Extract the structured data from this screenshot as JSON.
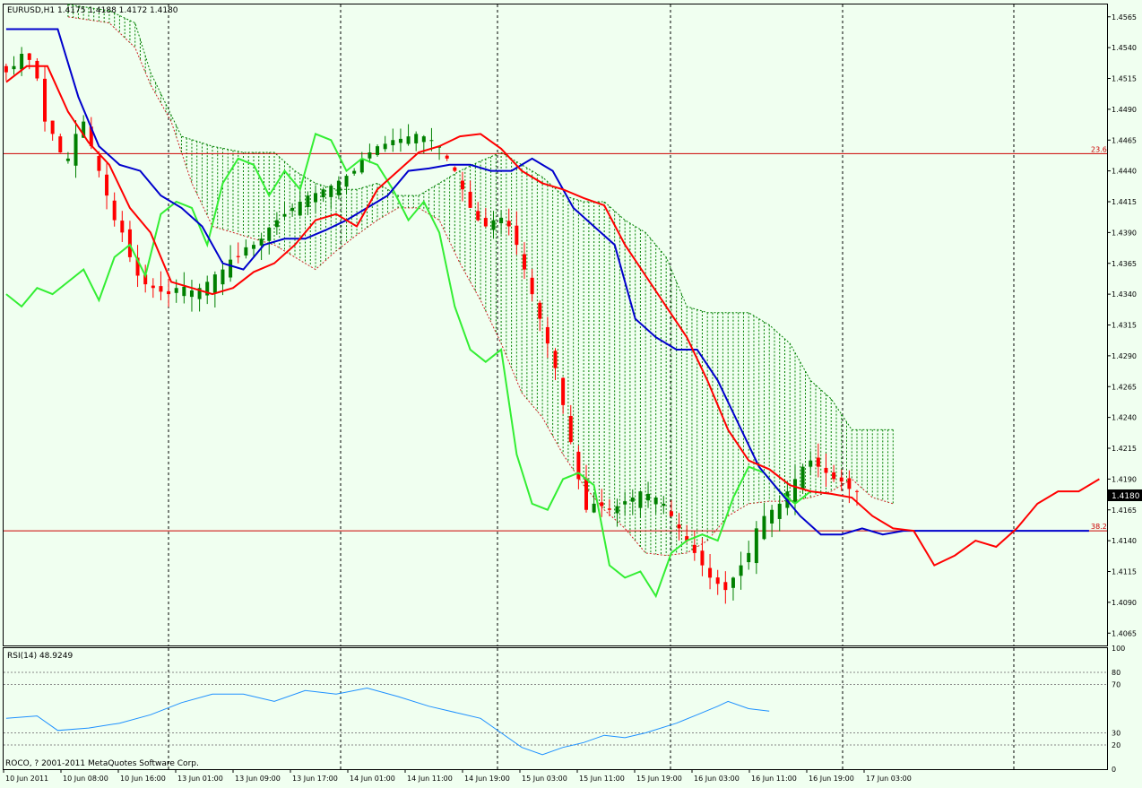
{
  "window": {
    "symbol_label": "EURUSD,H1  1.4175 1.4188 1.4172 1.4180",
    "rsi_label": "RSI(14) 48.9249",
    "copyright": "ROCO, ? 2001-2011 MetaQuotes Software Corp."
  },
  "colors": {
    "background": "#F0FFF0",
    "bull_candle": "#008000",
    "bear_candle": "#FF0000",
    "tenkan": "#FF0000",
    "kijun": "#0000CC",
    "chikou": "#33EE33",
    "cloud_bull": "#008000",
    "cloud_bear": "#CC2222",
    "rsi_line": "#1E90FF",
    "fib_line": "#CC0000",
    "grid": "#000000"
  },
  "chart_data": {
    "type": "candlestick",
    "symbol": "EURUSD",
    "timeframe": "H1",
    "current_price": "1.4180",
    "price_axis": {
      "ylim": [
        1.4055,
        1.4575
      ],
      "ticks": [
        "1.4565",
        "1.4540",
        "1.4515",
        "1.4490",
        "1.4465",
        "1.4440",
        "1.4415",
        "1.4390",
        "1.4365",
        "1.4340",
        "1.4315",
        "1.4290",
        "1.4265",
        "1.4240",
        "1.4215",
        "1.4190",
        "1.4165",
        "1.4140",
        "1.4115",
        "1.4090",
        "1.4065"
      ]
    },
    "time_axis": {
      "labels": [
        "10 Jun 2011",
        "10 Jun 08:00",
        "10 Jun 16:00",
        "13 Jun 01:00",
        "13 Jun 09:00",
        "13 Jun 17:00",
        "14 Jun 01:00",
        "14 Jun 11:00",
        "14 Jun 19:00",
        "15 Jun 03:00",
        "15 Jun 11:00",
        "15 Jun 19:00",
        "16 Jun 03:00",
        "16 Jun 11:00",
        "16 Jun 19:00",
        "17 Jun 03:00"
      ]
    },
    "fibonacci_levels": [
      {
        "label": "23.6",
        "price": 1.4454
      },
      {
        "label": "38.2",
        "price": 1.4148
      }
    ],
    "closes": [
      1.452,
      1.4525,
      1.4535,
      1.453,
      1.4515,
      1.448,
      1.447,
      1.4455,
      1.445,
      1.447,
      1.448,
      1.446,
      1.444,
      1.442,
      1.44,
      1.439,
      1.437,
      1.4355,
      1.4348,
      1.4345,
      1.4342,
      1.434,
      1.4345,
      1.4346,
      1.4343,
      1.4345,
      1.435,
      1.4356,
      1.436,
      1.4368,
      1.437,
      1.4378,
      1.438,
      1.4385,
      1.4394,
      1.44,
      1.4405,
      1.441,
      1.4415,
      1.442,
      1.4422,
      1.4425,
      1.4428,
      1.4432,
      1.4436,
      1.444,
      1.445,
      1.4455,
      1.446,
      1.4462,
      1.4465,
      1.4466,
      1.4468,
      1.447,
      1.4468,
      1.4465,
      1.446,
      1.445,
      1.444,
      1.4425,
      1.441,
      1.44,
      1.4395,
      1.44,
      1.4402,
      1.4395,
      1.438,
      1.436,
      1.434,
      1.432,
      1.43,
      1.428,
      1.425,
      1.422,
      1.419,
      1.4165,
      1.417,
      1.4168,
      1.4165,
      1.4168,
      1.4172,
      1.4175,
      1.418,
      1.4178,
      1.4175,
      1.417,
      1.416,
      1.415,
      1.414,
      1.413,
      1.412,
      1.411,
      1.4105,
      1.41,
      1.411,
      1.412,
      1.413,
      1.415,
      1.416,
      1.4165,
      1.417,
      1.418,
      1.419,
      1.42,
      1.4205,
      1.42,
      1.4195,
      1.419,
      1.4188,
      1.4182,
      1.418
    ],
    "tenkan_sen": [
      [
        0,
        1.4512
      ],
      [
        4,
        1.4525
      ],
      [
        8,
        1.4525
      ],
      [
        12,
        1.4488
      ],
      [
        16,
        1.4463
      ],
      [
        20,
        1.4445
      ],
      [
        24,
        1.441
      ],
      [
        28,
        1.439
      ],
      [
        32,
        1.435
      ],
      [
        36,
        1.4345
      ],
      [
        40,
        1.434
      ],
      [
        44,
        1.4345
      ],
      [
        48,
        1.4358
      ],
      [
        52,
        1.4365
      ],
      [
        56,
        1.438
      ],
      [
        60,
        1.44
      ],
      [
        64,
        1.4405
      ],
      [
        68,
        1.4395
      ],
      [
        72,
        1.4425
      ],
      [
        76,
        1.444
      ],
      [
        80,
        1.4455
      ],
      [
        84,
        1.446
      ],
      [
        88,
        1.4468
      ],
      [
        92,
        1.447
      ],
      [
        96,
        1.4458
      ],
      [
        100,
        1.444
      ],
      [
        104,
        1.443
      ],
      [
        108,
        1.4425
      ],
      [
        112,
        1.4418
      ],
      [
        116,
        1.4412
      ],
      [
        120,
        1.438
      ],
      [
        124,
        1.4355
      ],
      [
        128,
        1.433
      ],
      [
        132,
        1.4305
      ],
      [
        136,
        1.427
      ],
      [
        140,
        1.423
      ],
      [
        144,
        1.4205
      ],
      [
        148,
        1.4198
      ],
      [
        152,
        1.4185
      ],
      [
        156,
        1.418
      ],
      [
        160,
        1.4178
      ],
      [
        164,
        1.4175
      ],
      [
        168,
        1.416
      ],
      [
        172,
        1.415
      ],
      [
        176,
        1.4148
      ],
      [
        180,
        1.412
      ],
      [
        184,
        1.4128
      ],
      [
        188,
        1.414
      ],
      [
        192,
        1.4135
      ],
      [
        196,
        1.415
      ],
      [
        200,
        1.417
      ],
      [
        204,
        1.418
      ],
      [
        208,
        1.418
      ],
      [
        212,
        1.419
      ]
    ],
    "kijun_sen": [
      [
        0,
        1.4555
      ],
      [
        6,
        1.4555
      ],
      [
        10,
        1.4555
      ],
      [
        14,
        1.45
      ],
      [
        18,
        1.446
      ],
      [
        22,
        1.4445
      ],
      [
        26,
        1.444
      ],
      [
        30,
        1.442
      ],
      [
        34,
        1.441
      ],
      [
        38,
        1.4395
      ],
      [
        42,
        1.4365
      ],
      [
        46,
        1.436
      ],
      [
        50,
        1.438
      ],
      [
        54,
        1.4385
      ],
      [
        58,
        1.4385
      ],
      [
        62,
        1.4392
      ],
      [
        66,
        1.44
      ],
      [
        70,
        1.441
      ],
      [
        74,
        1.442
      ],
      [
        78,
        1.444
      ],
      [
        82,
        1.4442
      ],
      [
        86,
        1.4445
      ],
      [
        90,
        1.4445
      ],
      [
        94,
        1.444
      ],
      [
        98,
        1.444
      ],
      [
        102,
        1.445
      ],
      [
        106,
        1.444
      ],
      [
        110,
        1.441
      ],
      [
        114,
        1.4395
      ],
      [
        118,
        1.438
      ],
      [
        122,
        1.432
      ],
      [
        126,
        1.4305
      ],
      [
        130,
        1.4295
      ],
      [
        134,
        1.4295
      ],
      [
        138,
        1.427
      ],
      [
        142,
        1.4235
      ],
      [
        146,
        1.42
      ],
      [
        150,
        1.418
      ],
      [
        154,
        1.416
      ],
      [
        158,
        1.4145
      ],
      [
        162,
        1.4145
      ],
      [
        166,
        1.415
      ],
      [
        170,
        1.4145
      ],
      [
        174,
        1.4148
      ],
      [
        178,
        1.4148
      ],
      [
        182,
        1.4148
      ],
      [
        186,
        1.4148
      ],
      [
        190,
        1.4148
      ],
      [
        194,
        1.4148
      ],
      [
        198,
        1.4148
      ],
      [
        202,
        1.4148
      ],
      [
        206,
        1.4148
      ],
      [
        210,
        1.4148
      ]
    ],
    "chikou_span": [
      [
        0,
        1.434
      ],
      [
        3,
        1.433
      ],
      [
        6,
        1.4345
      ],
      [
        9,
        1.434
      ],
      [
        12,
        1.435
      ],
      [
        15,
        1.436
      ],
      [
        18,
        1.4335
      ],
      [
        21,
        1.437
      ],
      [
        24,
        1.438
      ],
      [
        27,
        1.4355
      ],
      [
        30,
        1.4405
      ],
      [
        33,
        1.4415
      ],
      [
        36,
        1.441
      ],
      [
        39,
        1.438
      ],
      [
        42,
        1.443
      ],
      [
        45,
        1.445
      ],
      [
        48,
        1.4445
      ],
      [
        51,
        1.442
      ],
      [
        54,
        1.444
      ],
      [
        57,
        1.4425
      ],
      [
        60,
        1.447
      ],
      [
        63,
        1.4465
      ],
      [
        66,
        1.444
      ],
      [
        69,
        1.445
      ],
      [
        72,
        1.4445
      ],
      [
        75,
        1.4425
      ],
      [
        78,
        1.44
      ],
      [
        81,
        1.4415
      ],
      [
        84,
        1.439
      ],
      [
        87,
        1.433
      ],
      [
        90,
        1.4295
      ],
      [
        93,
        1.4285
      ],
      [
        96,
        1.4295
      ],
      [
        99,
        1.421
      ],
      [
        102,
        1.417
      ],
      [
        105,
        1.4165
      ],
      [
        108,
        1.419
      ],
      [
        111,
        1.4195
      ],
      [
        114,
        1.4185
      ],
      [
        117,
        1.412
      ],
      [
        120,
        1.411
      ],
      [
        123,
        1.4115
      ],
      [
        126,
        1.4095
      ],
      [
        129,
        1.413
      ],
      [
        132,
        1.414
      ],
      [
        135,
        1.4145
      ],
      [
        138,
        1.414
      ],
      [
        141,
        1.4175
      ],
      [
        144,
        1.42
      ],
      [
        147,
        1.4195
      ],
      [
        150,
        1.418
      ],
      [
        153,
        1.417
      ],
      [
        156,
        1.418
      ]
    ],
    "cloud": {
      "upper": [
        [
          12,
          1.4575
        ],
        [
          20,
          1.457
        ],
        [
          25,
          1.456
        ],
        [
          28,
          1.452
        ],
        [
          34,
          1.4468
        ],
        [
          40,
          1.446
        ],
        [
          46,
          1.4455
        ],
        [
          52,
          1.4455
        ],
        [
          56,
          1.444
        ],
        [
          60,
          1.443
        ],
        [
          64,
          1.4425
        ],
        [
          68,
          1.4425
        ],
        [
          72,
          1.443
        ],
        [
          76,
          1.442
        ],
        [
          80,
          1.442
        ],
        [
          84,
          1.443
        ],
        [
          88,
          1.444
        ],
        [
          92,
          1.4448
        ],
        [
          96,
          1.4455
        ],
        [
          100,
          1.4445
        ],
        [
          104,
          1.4435
        ],
        [
          108,
          1.442
        ],
        [
          112,
          1.4415
        ],
        [
          116,
          1.4415
        ],
        [
          120,
          1.44
        ],
        [
          124,
          1.439
        ],
        [
          128,
          1.437
        ],
        [
          132,
          1.433
        ],
        [
          136,
          1.4325
        ],
        [
          140,
          1.4325
        ],
        [
          144,
          1.4325
        ],
        [
          148,
          1.4315
        ],
        [
          152,
          1.43
        ],
        [
          156,
          1.427
        ],
        [
          160,
          1.4255
        ],
        [
          164,
          1.423
        ],
        [
          168,
          1.423
        ],
        [
          172,
          1.423
        ]
      ],
      "lower": [
        [
          12,
          1.4565
        ],
        [
          20,
          1.456
        ],
        [
          25,
          1.454
        ],
        [
          28,
          1.451
        ],
        [
          32,
          1.448
        ],
        [
          36,
          1.443
        ],
        [
          40,
          1.4395
        ],
        [
          44,
          1.439
        ],
        [
          48,
          1.4385
        ],
        [
          52,
          1.438
        ],
        [
          56,
          1.437
        ],
        [
          60,
          1.436
        ],
        [
          64,
          1.4375
        ],
        [
          68,
          1.4388
        ],
        [
          72,
          1.44
        ],
        [
          76,
          1.441
        ],
        [
          80,
          1.441
        ],
        [
          84,
          1.44
        ],
        [
          88,
          1.4365
        ],
        [
          92,
          1.4335
        ],
        [
          96,
          1.43
        ],
        [
          100,
          1.426
        ],
        [
          104,
          1.424
        ],
        [
          108,
          1.421
        ],
        [
          112,
          1.4185
        ],
        [
          116,
          1.4165
        ],
        [
          120,
          1.415
        ],
        [
          124,
          1.413
        ],
        [
          128,
          1.4128
        ],
        [
          132,
          1.413
        ],
        [
          136,
          1.414
        ],
        [
          140,
          1.416
        ],
        [
          144,
          1.417
        ],
        [
          148,
          1.4172
        ],
        [
          152,
          1.4172
        ],
        [
          156,
          1.4175
        ],
        [
          160,
          1.418
        ],
        [
          164,
          1.419
        ],
        [
          168,
          1.4175
        ],
        [
          172,
          1.417
        ]
      ]
    },
    "rsi": {
      "label": "RSI(14) 48.9249",
      "ylim": [
        0,
        100
      ],
      "levels": [
        "100",
        "80",
        "70",
        "30",
        "20",
        "0"
      ],
      "values": [
        [
          0,
          42
        ],
        [
          6,
          44
        ],
        [
          10,
          32
        ],
        [
          16,
          34
        ],
        [
          22,
          38
        ],
        [
          28,
          45
        ],
        [
          34,
          55
        ],
        [
          40,
          62
        ],
        [
          46,
          62
        ],
        [
          52,
          56
        ],
        [
          58,
          65
        ],
        [
          64,
          62
        ],
        [
          70,
          67
        ],
        [
          76,
          60
        ],
        [
          82,
          52
        ],
        [
          88,
          46
        ],
        [
          92,
          42
        ],
        [
          96,
          30
        ],
        [
          100,
          18
        ],
        [
          104,
          12
        ],
        [
          108,
          18
        ],
        [
          112,
          22
        ],
        [
          116,
          28
        ],
        [
          120,
          26
        ],
        [
          124,
          30
        ],
        [
          130,
          38
        ],
        [
          134,
          45
        ],
        [
          138,
          52
        ],
        [
          140,
          56
        ],
        [
          144,
          50
        ],
        [
          148,
          48
        ]
      ]
    }
  }
}
